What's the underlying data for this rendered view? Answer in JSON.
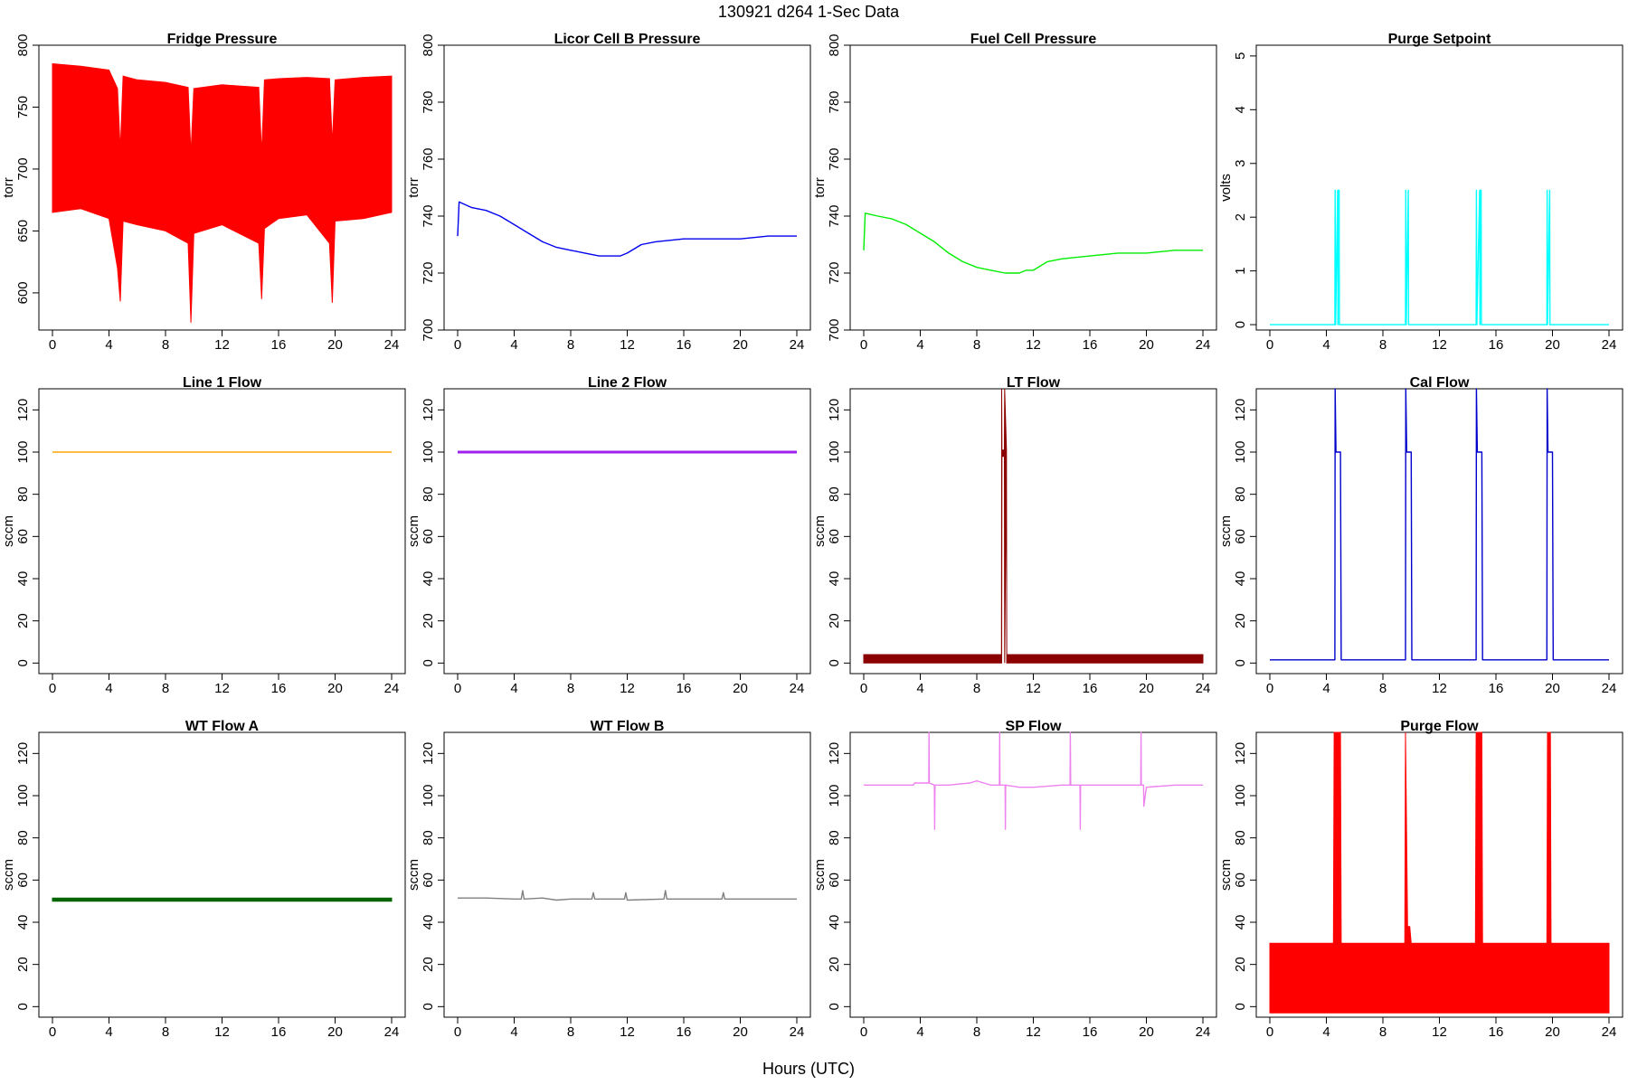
{
  "figure": {
    "title": "130921   d264   1-Sec Data",
    "xlabel": "Hours (UTC)"
  },
  "chart_data": [
    {
      "type": "line",
      "title": "Fridge Pressure",
      "ylabel": "torr",
      "color": "#ff0000",
      "xlim": [
        0,
        24
      ],
      "ylim": [
        570,
        800
      ],
      "x_ticks": [
        "0",
        "4",
        "8",
        "12",
        "16",
        "20",
        "24"
      ],
      "y_ticks": [
        "600",
        "650",
        "700",
        "750",
        "800"
      ],
      "series": [
        {
          "name": "band_upper",
          "x": [
            0,
            2,
            4,
            4.6,
            4.8,
            5,
            6,
            8,
            9.6,
            9.8,
            10,
            12,
            14.6,
            14.8,
            15,
            16,
            18,
            19.6,
            19.8,
            20,
            22,
            24
          ],
          "y": [
            785,
            783,
            780,
            765,
            715,
            775,
            772,
            770,
            766,
            712,
            765,
            768,
            766,
            712,
            772,
            773,
            774,
            773,
            720,
            772,
            774,
            775
          ]
        },
        {
          "name": "band_lower",
          "x": [
            0,
            2,
            4,
            4.6,
            4.8,
            5,
            6,
            8,
            9.6,
            9.8,
            10,
            12,
            14.6,
            14.8,
            15,
            16,
            18,
            19.6,
            19.8,
            20,
            22,
            24
          ],
          "y": [
            665,
            668,
            660,
            620,
            593,
            658,
            655,
            650,
            640,
            576,
            648,
            655,
            640,
            595,
            652,
            660,
            663,
            640,
            592,
            658,
            660,
            665
          ]
        }
      ]
    },
    {
      "type": "line",
      "title": "Licor Cell B Pressure",
      "ylabel": "torr",
      "color": "#0000ee",
      "xlim": [
        0,
        24
      ],
      "ylim": [
        700,
        800
      ],
      "x_ticks": [
        "0",
        "4",
        "8",
        "12",
        "16",
        "20",
        "24"
      ],
      "y_ticks": [
        "700",
        "720",
        "740",
        "760",
        "780",
        "800"
      ],
      "series": [
        {
          "name": "pressure",
          "x": [
            0,
            0.1,
            1,
            2,
            3,
            4,
            5,
            6,
            7,
            8,
            9,
            10,
            11,
            11.5,
            12,
            13,
            14,
            16,
            18,
            20,
            22,
            24
          ],
          "y": [
            733,
            745,
            743,
            742,
            740,
            737,
            734,
            731,
            729,
            728,
            727,
            726,
            726,
            726,
            727,
            730,
            731,
            732,
            732,
            732,
            733,
            733
          ]
        }
      ]
    },
    {
      "type": "line",
      "title": "Fuel Cell Pressure",
      "ylabel": "torr",
      "color": "#00ee00",
      "xlim": [
        0,
        24
      ],
      "ylim": [
        700,
        800
      ],
      "x_ticks": [
        "0",
        "4",
        "8",
        "12",
        "16",
        "20",
        "24"
      ],
      "y_ticks": [
        "700",
        "720",
        "740",
        "760",
        "780",
        "800"
      ],
      "series": [
        {
          "name": "pressure",
          "x": [
            0,
            0.1,
            1,
            2,
            3,
            4,
            5,
            6,
            7,
            8,
            9,
            10,
            11,
            11.5,
            12,
            13,
            14,
            16,
            18,
            20,
            22,
            24
          ],
          "y": [
            728,
            741,
            740,
            739,
            737,
            734,
            731,
            727,
            724,
            722,
            721,
            720,
            720,
            721,
            721,
            724,
            725,
            726,
            727,
            727,
            728,
            728
          ]
        }
      ]
    },
    {
      "type": "line",
      "title": "Purge Setpoint",
      "ylabel": "volts",
      "color": "#00ffff",
      "xlim": [
        0,
        24
      ],
      "ylim": [
        -0.1,
        5.2
      ],
      "x_ticks": [
        "0",
        "4",
        "8",
        "12",
        "16",
        "20",
        "24"
      ],
      "y_ticks": [
        "0",
        "1",
        "2",
        "3",
        "4",
        "5"
      ],
      "series": [
        {
          "name": "setpoint",
          "x": [
            0,
            4.6,
            4.62,
            4.65,
            4.8,
            4.82,
            4.85,
            4.9,
            4.92,
            9.6,
            9.62,
            9.65,
            9.8,
            9.82,
            9.85,
            14.6,
            14.62,
            14.65,
            14.85,
            14.87,
            14.9,
            14.95,
            14.97,
            19.6,
            19.62,
            19.65,
            19.8,
            19.82,
            19.85,
            24
          ],
          "y": [
            0,
            0,
            2.5,
            0,
            2.5,
            0,
            2.5,
            2.5,
            0,
            0,
            2.5,
            0,
            2.5,
            0,
            0,
            0,
            2.5,
            0,
            2.5,
            0,
            2.5,
            2.5,
            0,
            0,
            2.5,
            0,
            2.5,
            0,
            0,
            0
          ]
        }
      ]
    },
    {
      "type": "line",
      "title": "Line 1 Flow",
      "ylabel": "sccm",
      "color": "#ffa500",
      "xlim": [
        0,
        24
      ],
      "ylim": [
        -5,
        130
      ],
      "x_ticks": [
        "0",
        "4",
        "8",
        "12",
        "16",
        "20",
        "24"
      ],
      "y_ticks": [
        "0",
        "20",
        "40",
        "60",
        "80",
        "100",
        "120"
      ],
      "series": [
        {
          "name": "flow",
          "x": [
            0,
            24
          ],
          "y": [
            100,
            100
          ]
        }
      ]
    },
    {
      "type": "line",
      "title": "Line 2 Flow",
      "ylabel": "sccm",
      "color": "#a020f0",
      "xlim": [
        0,
        24
      ],
      "ylim": [
        -5,
        130
      ],
      "x_ticks": [
        "0",
        "4",
        "8",
        "12",
        "16",
        "20",
        "24"
      ],
      "y_ticks": [
        "0",
        "20",
        "40",
        "60",
        "80",
        "100",
        "120"
      ],
      "series": [
        {
          "name": "flow",
          "x": [
            0,
            24
          ],
          "y": [
            100,
            100
          ]
        }
      ]
    },
    {
      "type": "line",
      "title": "LT Flow",
      "ylabel": "sccm",
      "color": "#8b0000",
      "xlim": [
        0,
        24
      ],
      "ylim": [
        -5,
        130
      ],
      "x_ticks": [
        "0",
        "4",
        "8",
        "12",
        "16",
        "20",
        "24"
      ],
      "y_ticks": [
        "0",
        "20",
        "40",
        "60",
        "80",
        "100",
        "120"
      ],
      "series": [
        {
          "name": "band_upper",
          "x": [
            0,
            9.75,
            9.76,
            9.78,
            9.95,
            9.97,
            10.1,
            10.12,
            24
          ],
          "y": [
            4,
            4,
            130,
            101,
            101,
            130,
            101,
            4,
            4
          ]
        },
        {
          "name": "band_lower",
          "x": [
            0,
            9.75,
            9.76,
            9.78,
            9.95,
            9.97,
            10.1,
            10.12,
            24
          ],
          "y": [
            0,
            0,
            0,
            98,
            98,
            0,
            98,
            0,
            0
          ]
        }
      ]
    },
    {
      "type": "line",
      "title": "Cal Flow",
      "ylabel": "sccm",
      "color": "#0000cd",
      "xlim": [
        0,
        24
      ],
      "ylim": [
        -5,
        130
      ],
      "x_ticks": [
        "0",
        "4",
        "8",
        "12",
        "16",
        "20",
        "24"
      ],
      "y_ticks": [
        "0",
        "20",
        "40",
        "60",
        "80",
        "100",
        "120"
      ],
      "series": [
        {
          "name": "flow",
          "x": [
            0,
            4.6,
            4.62,
            4.68,
            5,
            5.05,
            5.1,
            9.6,
            9.62,
            9.68,
            10,
            10.05,
            10.1,
            14.6,
            14.62,
            14.68,
            15,
            15.05,
            15.1,
            19.6,
            19.62,
            19.68,
            20,
            20.05,
            20.1,
            24
          ],
          "y": [
            1.5,
            1.5,
            130,
            100,
            100,
            1.5,
            1.5,
            1.5,
            130,
            100,
            100,
            1.5,
            1.5,
            1.5,
            130,
            100,
            100,
            1.5,
            1.5,
            1.5,
            130,
            100,
            100,
            1.5,
            1.5,
            1.5
          ]
        }
      ]
    },
    {
      "type": "line",
      "title": "WT Flow A",
      "ylabel": "sccm",
      "color": "#006400",
      "xlim": [
        0,
        24
      ],
      "ylim": [
        -5,
        130
      ],
      "x_ticks": [
        "0",
        "4",
        "8",
        "12",
        "16",
        "20",
        "24"
      ],
      "y_ticks": [
        "0",
        "20",
        "40",
        "60",
        "80",
        "100",
        "120"
      ],
      "series": [
        {
          "name": "band_upper",
          "x": [
            0,
            24
          ],
          "y": [
            51.5,
            51.5
          ]
        },
        {
          "name": "band_lower",
          "x": [
            0,
            24
          ],
          "y": [
            50,
            50
          ]
        }
      ]
    },
    {
      "type": "line",
      "title": "WT Flow B",
      "ylabel": "sccm",
      "color": "#808080",
      "xlim": [
        0,
        24
      ],
      "ylim": [
        -5,
        130
      ],
      "x_ticks": [
        "0",
        "4",
        "8",
        "12",
        "16",
        "20",
        "24"
      ],
      "y_ticks": [
        "0",
        "20",
        "40",
        "60",
        "80",
        "100",
        "120"
      ],
      "series": [
        {
          "name": "flow",
          "x": [
            0,
            2,
            4,
            4.5,
            4.6,
            4.7,
            6,
            7,
            8,
            9.5,
            9.6,
            9.7,
            11,
            11.8,
            11.9,
            12,
            14.6,
            14.7,
            14.8,
            16,
            18,
            18.7,
            18.8,
            18.9,
            20,
            24
          ],
          "y": [
            51.5,
            51.5,
            51,
            51,
            55,
            51,
            51.5,
            50.5,
            51,
            51,
            54,
            51,
            51,
            51,
            54,
            50.5,
            51,
            55,
            51,
            51,
            51,
            51,
            54,
            51,
            51,
            51
          ]
        }
      ]
    },
    {
      "type": "line",
      "title": "SP Flow",
      "ylabel": "sccm",
      "color": "#ee82ee",
      "xlim": [
        0,
        24
      ],
      "ylim": [
        -5,
        130
      ],
      "x_ticks": [
        "0",
        "4",
        "8",
        "12",
        "16",
        "20",
        "24"
      ],
      "y_ticks": [
        "0",
        "20",
        "40",
        "60",
        "80",
        "100",
        "120"
      ],
      "series": [
        {
          "name": "flow",
          "x": [
            0,
            3.5,
            3.6,
            4,
            4.6,
            4.62,
            4.64,
            5,
            5.02,
            5.04,
            6,
            7.5,
            8,
            8.5,
            9,
            9.6,
            9.62,
            9.64,
            10,
            10.02,
            10.04,
            11,
            12,
            14,
            14.6,
            14.62,
            14.64,
            15.3,
            15.32,
            15.34,
            16,
            18,
            19.6,
            19.62,
            19.64,
            19.8,
            19.82,
            20,
            22,
            24
          ],
          "y": [
            105,
            105,
            106,
            106,
            106,
            130,
            106,
            105,
            84,
            105,
            105,
            106,
            107,
            106,
            105,
            105,
            130,
            105,
            105,
            84,
            105,
            104,
            104,
            105,
            105,
            130,
            105,
            105,
            84,
            105,
            105,
            105,
            105,
            130,
            105,
            105,
            95,
            104,
            105,
            105
          ]
        }
      ]
    },
    {
      "type": "line",
      "title": "Purge Flow",
      "ylabel": "sccm",
      "color": "#ff0000",
      "xlim": [
        0,
        24
      ],
      "ylim": [
        -5,
        130
      ],
      "x_ticks": [
        "0",
        "4",
        "8",
        "12",
        "16",
        "20",
        "24"
      ],
      "y_ticks": [
        "0",
        "20",
        "40",
        "60",
        "80",
        "100",
        "120"
      ],
      "series": [
        {
          "name": "band_upper",
          "x": [
            0,
            4.5,
            4.55,
            5,
            5.05,
            9.55,
            9.6,
            9.75,
            9.9,
            10,
            10.1,
            14.55,
            14.6,
            15,
            15.05,
            19.6,
            19.65,
            19.85,
            19.9,
            24
          ],
          "y": [
            30,
            30,
            130,
            130,
            30,
            30,
            130,
            38,
            38,
            30,
            30,
            30,
            130,
            130,
            30,
            30,
            130,
            130,
            30,
            30
          ]
        },
        {
          "name": "band_lower",
          "x": [
            0,
            24
          ],
          "y": [
            -3,
            -3
          ]
        }
      ]
    }
  ]
}
